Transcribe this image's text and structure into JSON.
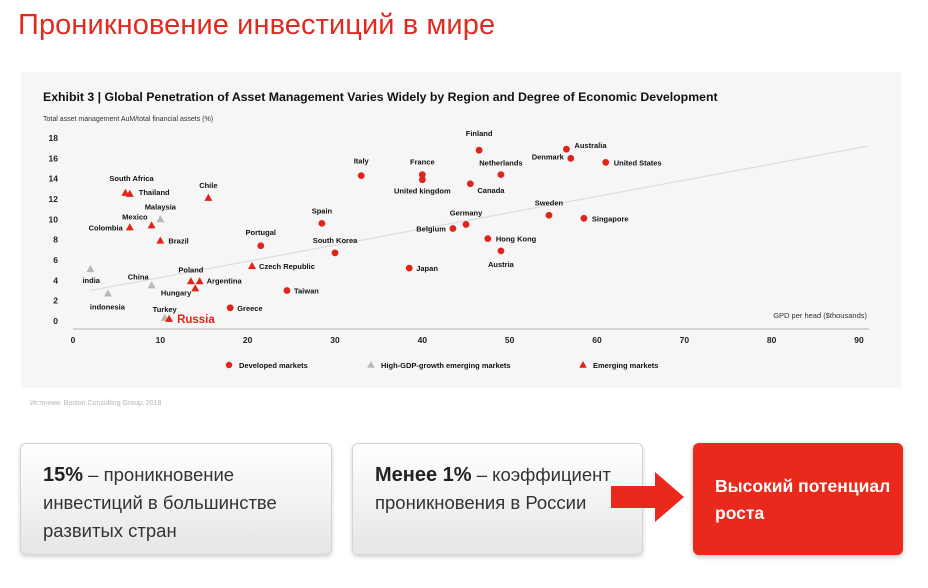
{
  "page": {
    "title": "Проникновение инвестиций в мире",
    "source": "Источник: Boston Consulting Group, 2018"
  },
  "chart_data": {
    "type": "scatter",
    "title": "Exhibit 3 | Global Penetration of Asset Management Varies Widely by Region and Degree of Economic Development",
    "ylabel": "Total asset management AuM/total financial assets (%)",
    "xlabel": "GPD per head ($thousands)",
    "xlim": [
      0,
      90
    ],
    "ylim": [
      0,
      18
    ],
    "xticks": [
      0,
      10,
      20,
      30,
      40,
      50,
      60,
      70,
      80,
      90
    ],
    "yticks": [
      0,
      2,
      4,
      6,
      8,
      10,
      12,
      14,
      16,
      18
    ],
    "grid": false,
    "trendline": [
      [
        2,
        3
      ],
      [
        91,
        17.2
      ]
    ],
    "legend_placement": "bottom",
    "colors": {
      "developed": "#e2231a",
      "high_growth": "#b8b8b8",
      "emerging": "#e2231a",
      "highlight": "#e2231a"
    },
    "series": [
      {
        "name": "Developed markets",
        "key": "developed",
        "marker": "circle",
        "points": [
          {
            "label": "Finland",
            "x": 46.5,
            "y": 16.8
          },
          {
            "label": "Australia",
            "x": 56.5,
            "y": 16.9
          },
          {
            "label": "Denmark",
            "x": 57,
            "y": 16
          },
          {
            "label": "United States",
            "x": 61,
            "y": 15.6
          },
          {
            "label": "Italy",
            "x": 33,
            "y": 14.3
          },
          {
            "label": "France",
            "x": 40,
            "y": 14.4
          },
          {
            "label": "United kingdom",
            "x": 40,
            "y": 13.9
          },
          {
            "label": "Netherlands",
            "x": 49,
            "y": 14.4
          },
          {
            "label": "Canada",
            "x": 45.5,
            "y": 13.5
          },
          {
            "label": "Sweden",
            "x": 54.5,
            "y": 10.4
          },
          {
            "label": "Singapore",
            "x": 58.5,
            "y": 10.1
          },
          {
            "label": "Spain",
            "x": 28.5,
            "y": 9.6
          },
          {
            "label": "Germany",
            "x": 45,
            "y": 9.5
          },
          {
            "label": "Belgium",
            "x": 43.5,
            "y": 9.1
          },
          {
            "label": "Hong Kong",
            "x": 47.5,
            "y": 8.1
          },
          {
            "label": "Austria",
            "x": 49,
            "y": 6.9
          },
          {
            "label": "Portugal",
            "x": 21.5,
            "y": 7.4
          },
          {
            "label": "South Korea",
            "x": 30,
            "y": 6.7
          },
          {
            "label": "Japan",
            "x": 38.5,
            "y": 5.2
          },
          {
            "label": "Taiwan",
            "x": 24.5,
            "y": 3
          },
          {
            "label": "Greece",
            "x": 18,
            "y": 1.3
          }
        ]
      },
      {
        "name": "High-GDP-growth emerging markets",
        "key": "high_growth",
        "marker": "triangle",
        "points": [
          {
            "label": "Malaysia",
            "x": 10,
            "y": 10
          },
          {
            "label": "India",
            "x": 2,
            "y": 5.1
          },
          {
            "label": "China",
            "x": 9,
            "y": 3.5
          },
          {
            "label": "Indonesia",
            "x": 4,
            "y": 2.7
          },
          {
            "label": "Turkey",
            "x": 10.5,
            "y": 0.3
          }
        ]
      },
      {
        "name": "Emerging markets",
        "key": "emerging",
        "marker": "triangle",
        "points": [
          {
            "label": "South Africa",
            "x": 6,
            "y": 12.6
          },
          {
            "label": "Thailand",
            "x": 6.5,
            "y": 12.5
          },
          {
            "label": "Chile",
            "x": 15.5,
            "y": 12.1
          },
          {
            "label": "Mexico",
            "x": 9,
            "y": 9.4
          },
          {
            "label": "Colombia",
            "x": 6.5,
            "y": 9.2
          },
          {
            "label": "Brazil",
            "x": 10,
            "y": 7.9
          },
          {
            "label": "Czech Republic",
            "x": 20.5,
            "y": 5.4
          },
          {
            "label": "Poland",
            "x": 13.5,
            "y": 3.9
          },
          {
            "label": "Argentina",
            "x": 14.5,
            "y": 3.9
          },
          {
            "label": "Hungary",
            "x": 14,
            "y": 3.2
          }
        ]
      }
    ],
    "highlight_point": {
      "label": "Russia",
      "x": 11,
      "y": 0.2
    }
  },
  "cards": {
    "card1": {
      "strong": "15%",
      "text": " – проникновение инвестиций в большинстве развитых стран"
    },
    "card2": {
      "strong": "Менее 1%",
      "text": " – коэффициент проникновения в России"
    },
    "card3": {
      "text": "Высокий потенциал роста"
    }
  }
}
